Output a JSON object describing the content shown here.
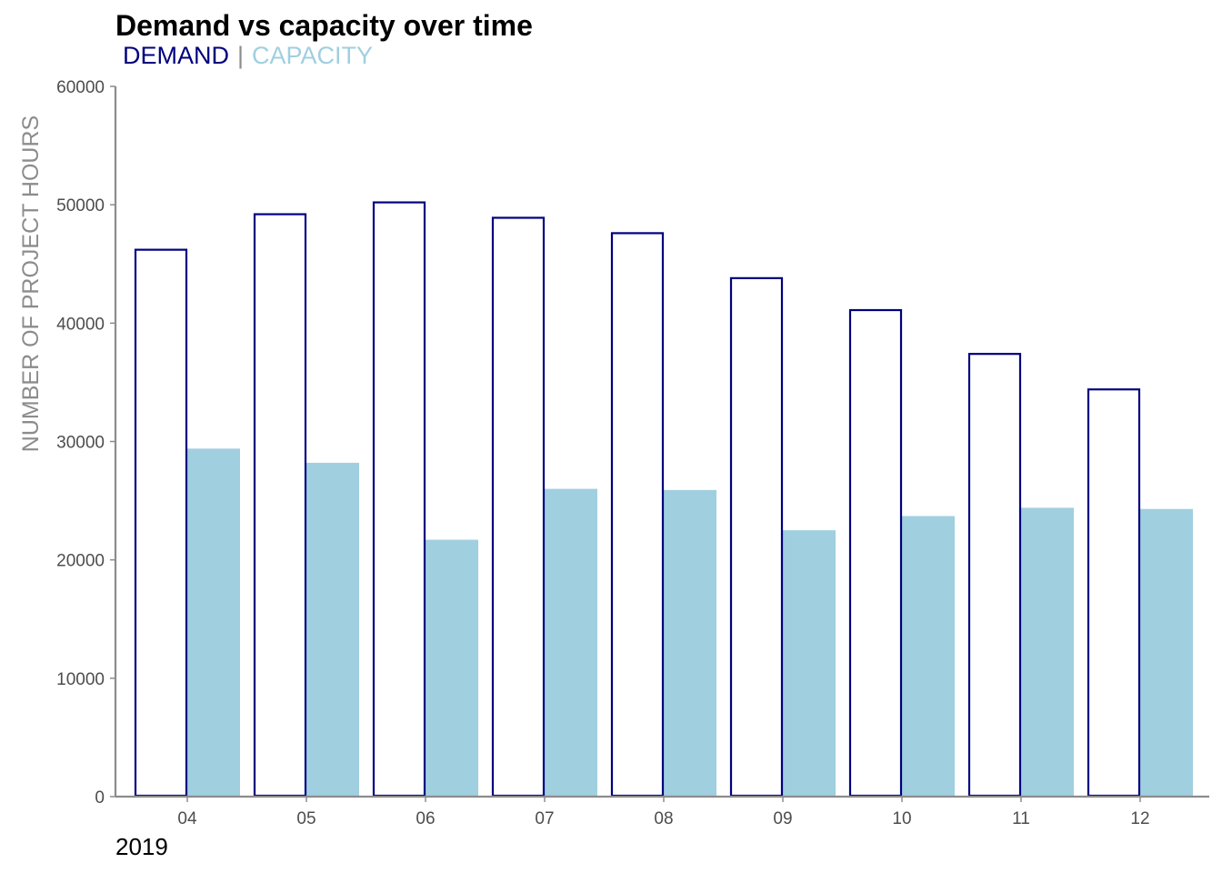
{
  "chart_data": {
    "type": "bar",
    "title": "Demand vs capacity over time",
    "legend": {
      "placement": "top-left",
      "separator": "|"
    },
    "categories": [
      "04",
      "05",
      "06",
      "07",
      "08",
      "09",
      "10",
      "11",
      "12"
    ],
    "x_group_label": "2019",
    "ylabel": "NUMBER OF PROJECT HOURS",
    "ylim": [
      0,
      60000
    ],
    "yticks": [
      0,
      10000,
      20000,
      30000,
      40000,
      50000,
      60000
    ],
    "grid": false,
    "series": [
      {
        "name": "DEMAND",
        "style": "outline",
        "color": "#00007f",
        "values": [
          46200,
          49200,
          50200,
          48900,
          47600,
          43800,
          41100,
          37400,
          34400
        ]
      },
      {
        "name": "CAPACITY",
        "style": "filled",
        "color": "#a0cfe0",
        "values": [
          29400,
          28200,
          21700,
          26000,
          25900,
          22500,
          23700,
          24400,
          24300
        ]
      }
    ]
  }
}
